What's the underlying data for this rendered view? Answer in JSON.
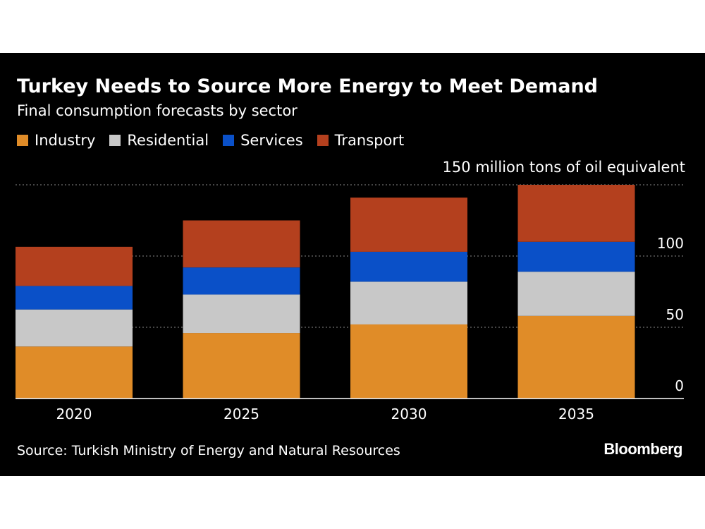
{
  "header": {
    "title": "Turkey Needs to Source More Energy to Meet Demand",
    "subtitle": "Final consumption forecasts by sector"
  },
  "legend": [
    {
      "label": "Industry",
      "color": "#e08c28"
    },
    {
      "label": "Residential",
      "color": "#c8c8c8"
    },
    {
      "label": "Services",
      "color": "#0a50c8"
    },
    {
      "label": "Transport",
      "color": "#b4401e"
    }
  ],
  "unit_label": "150 million tons of oil equivalent",
  "footer": {
    "source": "Source: Turkish Ministry of Energy and Natural Resources",
    "brand": "Bloomberg"
  },
  "chart_data": {
    "type": "bar",
    "stacked": true,
    "title": "Turkey Needs to Source More Energy to Meet Demand",
    "subtitle": "Final consumption forecasts by sector",
    "ylabel": "150 million tons of oil equivalent",
    "categories": [
      "2020",
      "2025",
      "2030",
      "2035"
    ],
    "series": [
      {
        "name": "Industry",
        "color": "#e08c28",
        "values": [
          36.5,
          46,
          52,
          58
        ]
      },
      {
        "name": "Residential",
        "color": "#c8c8c8",
        "values": [
          26,
          27,
          30,
          31
        ]
      },
      {
        "name": "Services",
        "color": "#0a50c8",
        "values": [
          16.5,
          19,
          21,
          21
        ]
      },
      {
        "name": "Transport",
        "color": "#b4401e",
        "values": [
          27.5,
          33,
          38,
          40
        ]
      }
    ],
    "ylim": [
      0,
      150
    ],
    "yticks": [
      0,
      50,
      100,
      150
    ],
    "ytick_labels": [
      "0",
      "50",
      "100",
      ""
    ],
    "grid": true,
    "legend_position": "top-left"
  }
}
